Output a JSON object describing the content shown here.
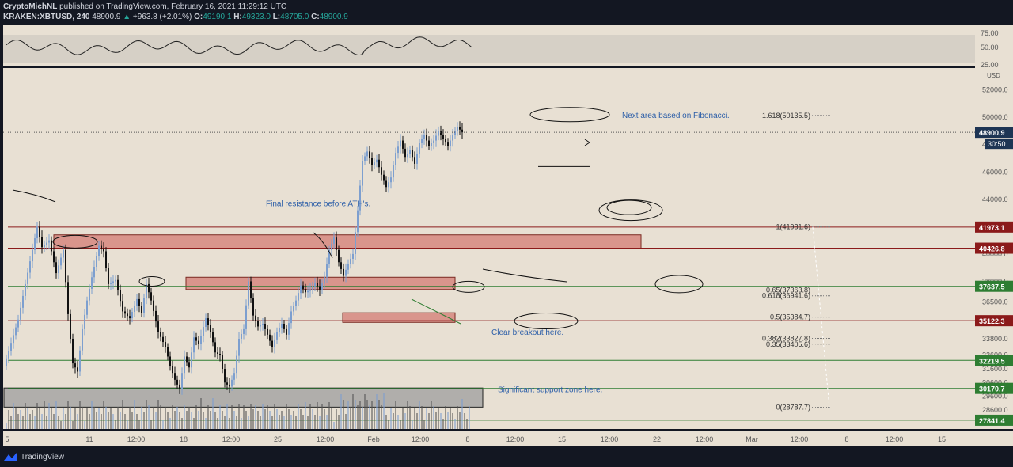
{
  "header": {
    "publisher": "CryptoMichNL",
    "published_text": "published on TradingView.com, February 16, 2021 11:29:12 UTC",
    "symbol": "KRAKEN:XBTUSD, 240",
    "price": "48900.9",
    "change": "+963.8 (+2.01%)",
    "o_label": "O:",
    "o_value": "49190.1",
    "h_label": "H:",
    "h_value": "49323.0",
    "l_label": "L:",
    "l_value": "48705.0",
    "c_label": "C:",
    "c_value": "48900.9"
  },
  "footer": {
    "brand": "TradingView"
  },
  "colors": {
    "bg": "#e8e0d3",
    "panel_bg": "#131722",
    "up": "#7d9fcf",
    "down": "#111111",
    "red_line": "#8b1a1a",
    "green_line": "#2e7d32",
    "zone_red": "#d4827a",
    "zone_gray": "#9e9e9e",
    "annotation_text": "#2c5ea8"
  },
  "chart_data": {
    "type": "candlestick",
    "price_axis_unit": "USD",
    "price_ticks": [
      "52000.0",
      "50000.0",
      "48000.0",
      "46000.0",
      "44000.0",
      "42000.0",
      "40000.0",
      "38000.0",
      "36500.0",
      "35000.0",
      "33800.0",
      "32600.0",
      "31600.0",
      "30600.0",
      "29600.0",
      "28600.0"
    ],
    "rsi_ticks": [
      "75.00",
      "50.00",
      "25.00"
    ],
    "time_ticks": [
      "5",
      "11",
      "12:00",
      "18",
      "12:00",
      "25",
      "12:00",
      "Feb",
      "12:00",
      "8",
      "12:00",
      "15",
      "12:00",
      "22",
      "12:00",
      "Mar",
      "12:00",
      "8",
      "12:00",
      "15"
    ],
    "last_price": "48900.9",
    "countdown": "30:50",
    "price_levels": [
      {
        "label": "41973.1",
        "kind": "red",
        "value": 41973.1
      },
      {
        "label": "40426.8",
        "kind": "red",
        "value": 40426.8
      },
      {
        "label": "37637.5",
        "kind": "green",
        "value": 37637.5
      },
      {
        "label": "35122.3",
        "kind": "red",
        "value": 35122.3
      },
      {
        "label": "32219.5",
        "kind": "green",
        "value": 32219.5
      },
      {
        "label": "30170.7",
        "kind": "green",
        "value": 30170.7
      },
      {
        "label": "27841.4",
        "kind": "green",
        "value": 27841.4
      }
    ],
    "fibonacci": [
      {
        "label": "1.618(50135.5)",
        "value": 50135.5
      },
      {
        "label": "1(41981.6)",
        "value": 41981.6
      },
      {
        "label": "0.65(37363.8)",
        "value": 37363.8
      },
      {
        "label": "0.618(36941.6)",
        "value": 36941.6
      },
      {
        "label": "0.5(35384.7)",
        "value": 35384.7
      },
      {
        "label": "0.382(33827.8)",
        "value": 33827.8
      },
      {
        "label": "0.35(33405.6)",
        "value": 33405.6
      },
      {
        "label": "0(28787.7)",
        "value": 28787.7
      }
    ],
    "annotations": [
      "Next area based on Fibonacci.",
      "Final resistance before ATH's.",
      "Clear breakout here.",
      "Significant support zone here."
    ],
    "zones": [
      {
        "kind": "red",
        "from": "Jan 7",
        "to": "Feb 20",
        "low": 40400,
        "high": 41400
      },
      {
        "kind": "red",
        "from": "Jan 18",
        "to": "Feb 5",
        "low": 37400,
        "high": 38300
      },
      {
        "kind": "red",
        "from": "Jan 28",
        "to": "Feb 5",
        "low": 35000,
        "high": 35700
      },
      {
        "kind": "gray",
        "from": "Jan 4",
        "to": "Feb 8",
        "low": 28800,
        "high": 30200
      }
    ],
    "path": [
      [
        0,
        31800
      ],
      [
        3,
        33500
      ],
      [
        6,
        35200
      ],
      [
        9,
        37800
      ],
      [
        12,
        40300
      ],
      [
        14,
        42000
      ],
      [
        16,
        40500
      ],
      [
        19,
        41000
      ],
      [
        22,
        38600
      ],
      [
        25,
        40300
      ],
      [
        27,
        35600
      ],
      [
        29,
        32000
      ],
      [
        31,
        31400
      ],
      [
        33,
        34500
      ],
      [
        35,
        36600
      ],
      [
        37,
        38300
      ],
      [
        40,
        40600
      ],
      [
        42,
        40200
      ],
      [
        44,
        37800
      ],
      [
        47,
        38100
      ],
      [
        50,
        35800
      ],
      [
        53,
        35300
      ],
      [
        56,
        36700
      ],
      [
        58,
        35700
      ],
      [
        60,
        37800
      ],
      [
        62,
        36600
      ],
      [
        65,
        34300
      ],
      [
        68,
        33200
      ],
      [
        70,
        31800
      ],
      [
        72,
        30800
      ],
      [
        74,
        30100
      ],
      [
        76,
        32500
      ],
      [
        78,
        31700
      ],
      [
        80,
        33900
      ],
      [
        82,
        33400
      ],
      [
        85,
        35300
      ],
      [
        87,
        34300
      ],
      [
        89,
        32800
      ],
      [
        91,
        32600
      ],
      [
        93,
        30600
      ],
      [
        95,
        30300
      ],
      [
        97,
        31300
      ],
      [
        99,
        33800
      ],
      [
        101,
        34500
      ],
      [
        103,
        38000
      ],
      [
        105,
        35500
      ],
      [
        107,
        34700
      ],
      [
        109,
        34900
      ],
      [
        111,
        34100
      ],
      [
        113,
        33200
      ],
      [
        115,
        34300
      ],
      [
        117,
        34900
      ],
      [
        119,
        34100
      ],
      [
        121,
        35800
      ],
      [
        123,
        36600
      ],
      [
        125,
        37700
      ],
      [
        127,
        37200
      ],
      [
        129,
        37400
      ],
      [
        131,
        37900
      ],
      [
        133,
        37400
      ],
      [
        135,
        38300
      ],
      [
        137,
        40300
      ],
      [
        139,
        41200
      ],
      [
        141,
        39400
      ],
      [
        143,
        38400
      ],
      [
        145,
        39300
      ],
      [
        147,
        40000
      ],
      [
        149,
        43200
      ],
      [
        151,
        46800
      ],
      [
        153,
        47500
      ],
      [
        155,
        46500
      ],
      [
        157,
        46900
      ],
      [
        159,
        45800
      ],
      [
        161,
        44900
      ],
      [
        163,
        45600
      ],
      [
        165,
        47400
      ],
      [
        167,
        48300
      ],
      [
        169,
        47100
      ],
      [
        171,
        47600
      ],
      [
        173,
        46600
      ],
      [
        175,
        48100
      ],
      [
        177,
        48700
      ],
      [
        179,
        47900
      ],
      [
        181,
        48300
      ],
      [
        183,
        49000
      ],
      [
        185,
        48400
      ],
      [
        187,
        47900
      ],
      [
        189,
        48700
      ],
      [
        191,
        49300
      ],
      [
        193,
        48900
      ]
    ]
  }
}
